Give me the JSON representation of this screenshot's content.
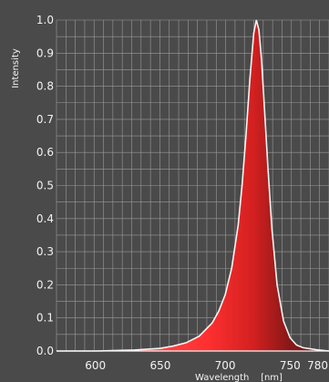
{
  "chart_data": {
    "type": "area",
    "xlabel": "Wavelength    [nm]",
    "ylabel": "Intensity",
    "xlim": [
      570,
      780
    ],
    "ylim": [
      0,
      1.0
    ],
    "x_ticks": [
      600,
      650,
      700,
      750,
      780
    ],
    "y_ticks": [
      0.0,
      0.1,
      0.2,
      0.3,
      0.4,
      0.5,
      0.6,
      0.7,
      0.8,
      0.9,
      1.0
    ],
    "y_tick_labels": [
      "0.0",
      "0.1",
      "0.2",
      "0.3",
      "0.4",
      "0.5",
      "0.6",
      "0.7",
      "0.8",
      "0.9",
      "1.0"
    ],
    "grid": true,
    "series": [
      {
        "x": [
          570,
          600,
          630,
          650,
          660,
          670,
          680,
          690,
          695,
          700,
          705,
          710,
          713,
          716,
          719,
          722,
          724,
          726,
          728,
          730,
          733,
          736,
          740,
          745,
          750,
          755,
          760,
          770,
          780
        ],
        "y": [
          0.0,
          0.0,
          0.003,
          0.008,
          0.015,
          0.025,
          0.045,
          0.085,
          0.12,
          0.17,
          0.25,
          0.38,
          0.5,
          0.65,
          0.82,
          0.96,
          1.0,
          0.97,
          0.88,
          0.75,
          0.55,
          0.37,
          0.2,
          0.09,
          0.04,
          0.018,
          0.01,
          0.004,
          0.0
        ]
      }
    ],
    "colors": {
      "background": "#4a4a4a",
      "grid": "#9a9a9a",
      "fill_light": "#ff5a5a",
      "fill_mid": "#e02828",
      "fill_dark": "#5a1414",
      "outline": "#f4f4f4",
      "text": "#f2f2f2"
    }
  }
}
